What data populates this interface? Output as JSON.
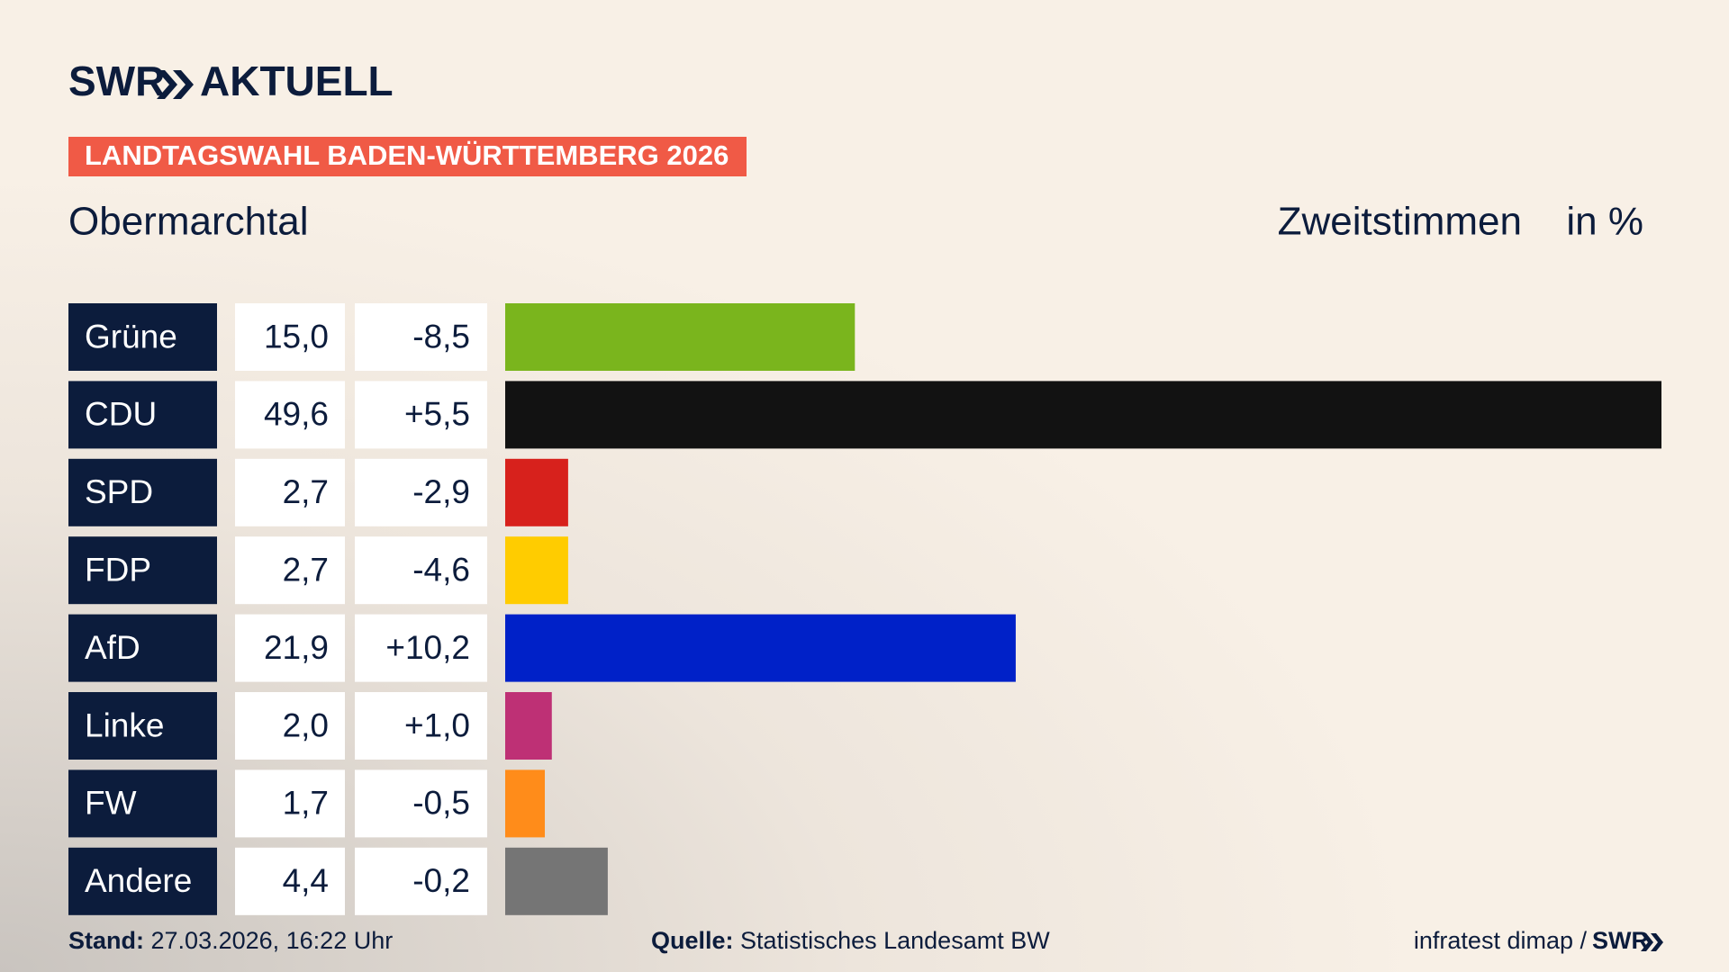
{
  "header": {
    "brand": "SWR",
    "product": "AKTUELL",
    "banner": "LANDTAGSWAHL BADEN-WÜRTTEMBERG 2026"
  },
  "chart_data": {
    "type": "bar",
    "title": "Obermarchtal",
    "subtitle": "Zweitstimmen",
    "unit_label": "in %",
    "categories": [
      "Grüne",
      "CDU",
      "SPD",
      "FDP",
      "AfD",
      "Linke",
      "FW",
      "Andere"
    ],
    "values": [
      15.0,
      49.6,
      2.7,
      2.7,
      21.9,
      2.0,
      1.7,
      4.4
    ],
    "value_labels": [
      "15,0",
      "49,6",
      "2,7",
      "2,7",
      "21,9",
      "2,0",
      "1,7",
      "4,4"
    ],
    "changes": [
      -8.5,
      5.5,
      -2.9,
      -4.6,
      10.2,
      1.0,
      -0.5,
      -0.2
    ],
    "change_labels": [
      "-8,5",
      "+5,5",
      "-2,9",
      "-4,6",
      "+10,2",
      "+1,0",
      "-0,5",
      "-0,2"
    ],
    "colors": [
      "#7ab51d",
      "#121212",
      "#d7211c",
      "#ffcc00",
      "#0021c8",
      "#be3075",
      "#ff8c1a",
      "#757575"
    ]
  },
  "footer": {
    "stand_label": "Stand:",
    "stand": "27.03.2026, 16:22 Uhr",
    "source_label": "Quelle:",
    "source": "Statistisches Landesamt BW",
    "credit": "infratest dimap /",
    "brand": "SWR"
  }
}
